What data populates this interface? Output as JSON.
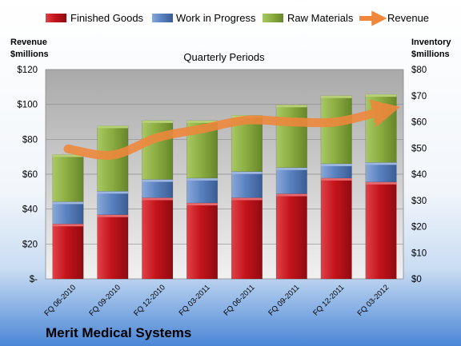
{
  "chart_data": {
    "type": "bar",
    "stacked": true,
    "title": "Quarterly Periods",
    "company": "Merit Medical Systems",
    "categories": [
      "FQ 06-2010",
      "FQ 09-2010",
      "FQ 12-2010",
      "FQ 03-2011",
      "FQ 06-2011",
      "FQ 09-2011",
      "FQ 12-2011",
      "FQ 03-2012"
    ],
    "series": [
      {
        "name": "Finished Goods",
        "axis": "right",
        "color": "#c0141b",
        "values": [
          21,
          24.5,
          31,
          29,
          31,
          32.5,
          38.5,
          37
        ]
      },
      {
        "name": "Work in Progress",
        "axis": "right",
        "color": "#4f79b9",
        "values": [
          8.5,
          9,
          7,
          9.5,
          10,
          10,
          5.5,
          7.5
        ]
      },
      {
        "name": "Raw Materials",
        "axis": "right",
        "color": "#8bae3f",
        "values": [
          18,
          25,
          22.5,
          22,
          21.5,
          24,
          26,
          26
        ]
      },
      {
        "name": "Revenue",
        "axis": "left",
        "type": "line",
        "color": "#f0873c",
        "values": [
          74.5,
          71,
          81,
          86,
          91,
          90,
          90,
          96
        ]
      }
    ],
    "left_axis": {
      "label": "Revenue\n$millions",
      "ylim": [
        0,
        120
      ],
      "ticks": [
        "$-",
        "$20",
        "$40",
        "$60",
        "$80",
        "$100",
        "$120"
      ]
    },
    "right_axis": {
      "label": "Inventory\n$millions",
      "ylim": [
        0,
        80
      ],
      "ticks": [
        "$0",
        "$10",
        "$20",
        "$30",
        "$40",
        "$50",
        "$60",
        "$70",
        "$80"
      ]
    },
    "legend_position": "top",
    "grid": true
  }
}
